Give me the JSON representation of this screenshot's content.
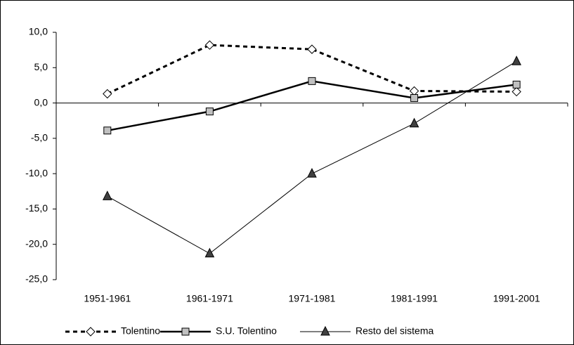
{
  "chart_data": {
    "type": "line",
    "categories": [
      "1951-1961",
      "1961-1971",
      "1971-1981",
      "1981-1991",
      "1991-2001"
    ],
    "series": [
      {
        "name": "Tolentino",
        "color": "#000000",
        "marker": "diamond",
        "marker_fill": "#ffffff",
        "dashed": true,
        "line_width": 3,
        "values": [
          1.3,
          8.2,
          7.6,
          1.7,
          1.6
        ]
      },
      {
        "name": "S.U. Tolentino",
        "color": "#000000",
        "marker": "square",
        "marker_fill": "#c0c0c0",
        "dashed": false,
        "line_width": 2.5,
        "values": [
          -3.9,
          -1.2,
          3.1,
          0.7,
          2.6
        ]
      },
      {
        "name": "Resto del sistema",
        "color": "#000000",
        "marker": "triangle",
        "marker_fill": "#404040",
        "dashed": false,
        "line_width": 1,
        "values": [
          -13.2,
          -21.3,
          -10.0,
          -2.9,
          5.9
        ]
      }
    ],
    "ylim": [
      -25,
      10
    ],
    "yticks": [
      {
        "value": 10,
        "label": "10,0"
      },
      {
        "value": 5,
        "label": "5,0"
      },
      {
        "value": 0,
        "label": "0,0"
      },
      {
        "value": -5,
        "label": "-5,0"
      },
      {
        "value": -10,
        "label": "-10,0"
      },
      {
        "value": -15,
        "label": "-15,0"
      },
      {
        "value": -20,
        "label": "-20,0"
      },
      {
        "value": -25,
        "label": "-25,0"
      }
    ],
    "legend": "bottom"
  }
}
